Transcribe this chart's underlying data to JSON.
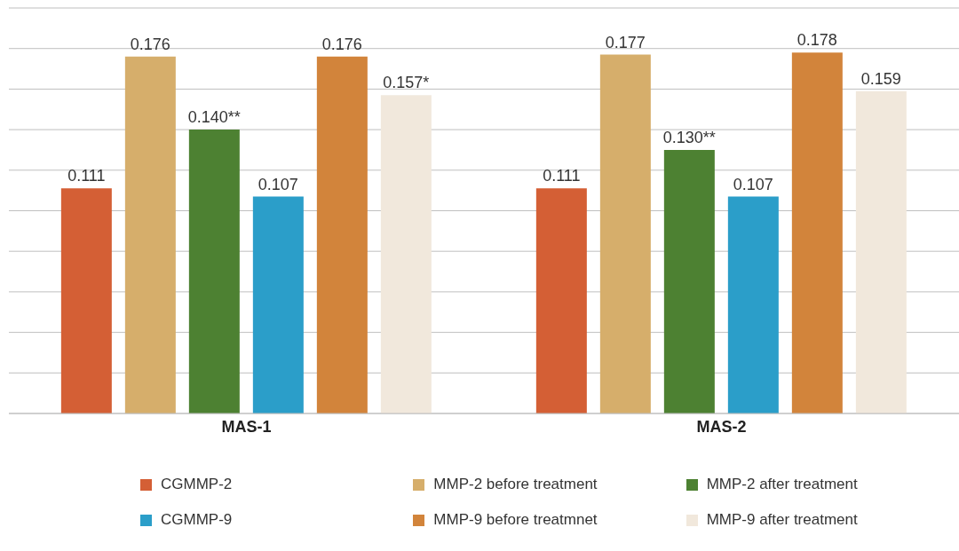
{
  "chart_data": {
    "type": "bar",
    "categories": [
      "MAS-1",
      "MAS-2"
    ],
    "series": [
      {
        "name": "CGMMP-2",
        "color": "#d45f35",
        "values": [
          0.111,
          0.111
        ],
        "value_labels": [
          "0.111",
          "0.111"
        ]
      },
      {
        "name": "MMP-2 before treatment",
        "color": "#d6ae6b",
        "values": [
          0.176,
          0.177
        ],
        "value_labels": [
          "0.176",
          "0.177"
        ]
      },
      {
        "name": "MMP-2 after treatment",
        "color": "#4d8132",
        "values": [
          0.14,
          0.13
        ],
        "value_labels": [
          "0.140**",
          "0.130**"
        ]
      },
      {
        "name": "CGMMP-9",
        "color": "#2b9ec9",
        "values": [
          0.107,
          0.107
        ],
        "value_labels": [
          "0.107",
          "0.107"
        ]
      },
      {
        "name": "MMP-9 before treatmnet",
        "color": "#d2843b",
        "values": [
          0.176,
          0.178
        ],
        "value_labels": [
          "0.176",
          "0.178"
        ]
      },
      {
        "name": "MMP-9 after treatment",
        "color": "#f1e8dc",
        "values": [
          0.157,
          0.159
        ],
        "value_labels": [
          "0.157*",
          "0.159"
        ]
      }
    ],
    "ylim": [
      0,
      0.2
    ],
    "tick_labels": "x",
    "grid": "y",
    "legend": "bottom"
  }
}
